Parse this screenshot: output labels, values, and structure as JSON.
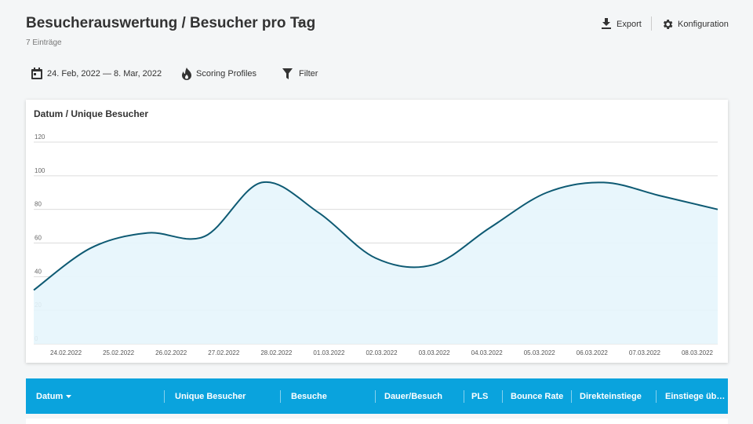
{
  "header": {
    "title": "Besucherauswertung / Besucher pro Tag",
    "count": "7 Einträge",
    "export": "Export",
    "config": "Konfiguration"
  },
  "toolbar": {
    "date_range": "24. Feb, 2022 — 8. Mar, 2022",
    "scoring": "Scoring Profiles",
    "filter": "Filter"
  },
  "chart_data": {
    "type": "area",
    "title": "Datum / Unique Besucher",
    "categories": [
      "24.02.2022",
      "25.02.2022",
      "26.02.2022",
      "27.02.2022",
      "28.02.2022",
      "01.03.2022",
      "02.03.2022",
      "03.03.2022",
      "04.03.2022",
      "05.03.2022",
      "06.03.2022",
      "07.03.2022",
      "08.03.2022"
    ],
    "values": [
      32,
      57,
      66,
      64,
      96,
      78,
      51,
      47,
      69,
      90,
      96,
      88,
      80
    ],
    "color": "#0e5a73",
    "fill_color": "#e6f5fc",
    "ylim": [
      0,
      120
    ],
    "yticks": [
      0,
      20,
      40,
      60,
      80,
      100,
      120
    ],
    "grid": true
  },
  "table": {
    "columns": [
      "Datum",
      "Unique Besucher",
      "Besuche",
      "Dauer/Besuch",
      "PLS",
      "Bounce Rate",
      "Direkteinstiege",
      "Einstiege üb…"
    ]
  }
}
